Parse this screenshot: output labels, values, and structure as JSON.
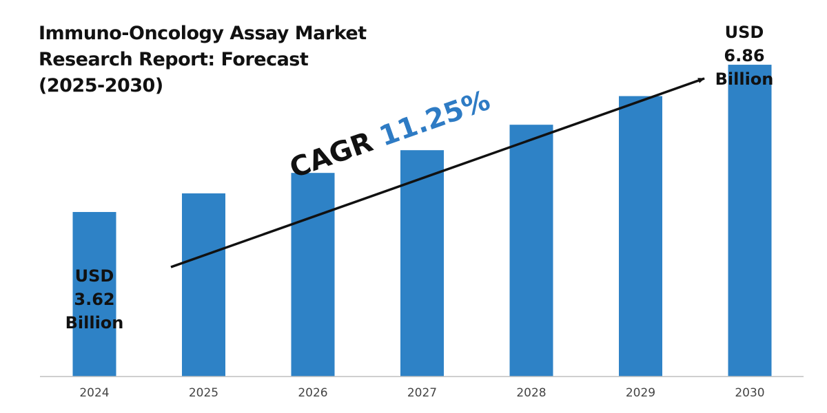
{
  "chart_data": {
    "type": "bar",
    "title_lines": [
      "Immuno-Oncology Assay Market",
      "Research Report: Forecast",
      "(2025-2030)"
    ],
    "categories": [
      "2024",
      "2025",
      "2026",
      "2027",
      "2028",
      "2029",
      "2030"
    ],
    "values": [
      3.62,
      4.03,
      4.48,
      4.98,
      5.54,
      6.17,
      6.86
    ],
    "unit": "USD Billion",
    "ylim": [
      0,
      7.3
    ],
    "bar_color": "#2e82c6",
    "axis_color": "#bfbfbf",
    "start_label": [
      "USD",
      "3.62",
      "Billion"
    ],
    "end_label": [
      "USD",
      "6.86",
      "Billion"
    ],
    "cagr_label": "CAGR",
    "cagr_value": "11.25%",
    "cagr_color": "#2e7bc4"
  }
}
